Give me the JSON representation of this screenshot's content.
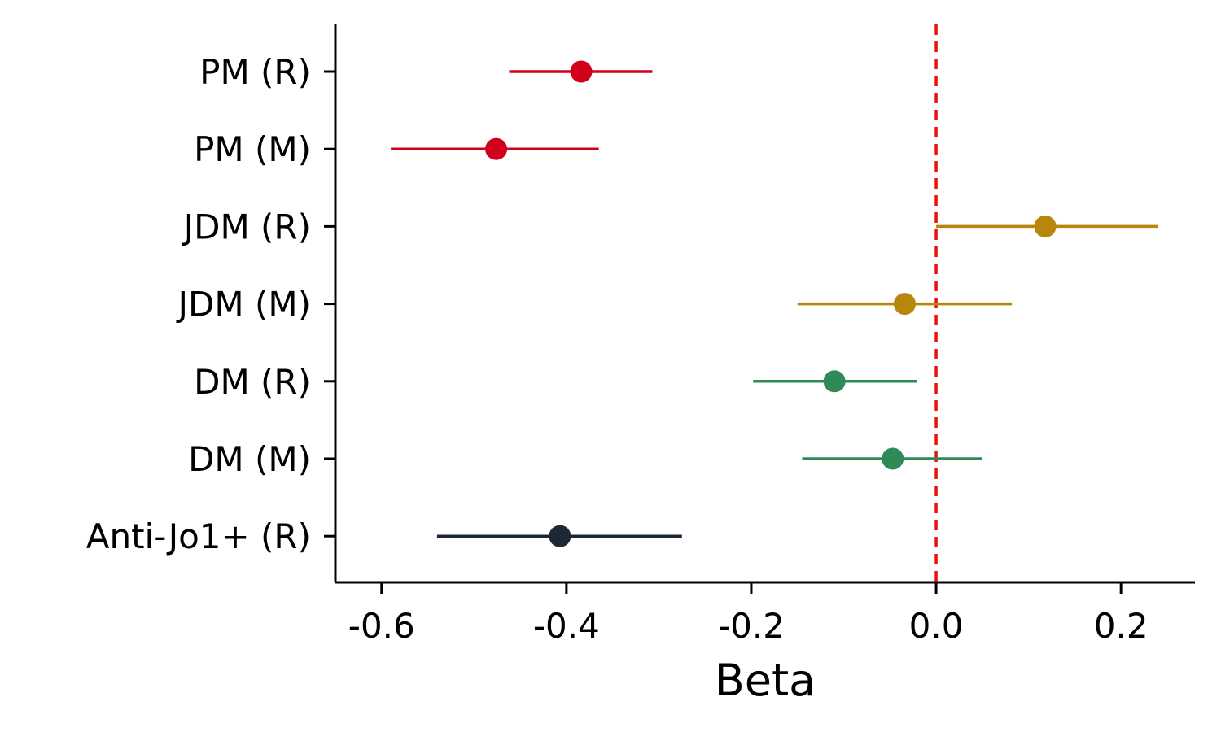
{
  "chart_data": {
    "type": "forest",
    "title": "",
    "xlabel": "Beta",
    "ylabel": "",
    "xlim": [
      -0.65,
      0.28
    ],
    "xticks": [
      -0.6,
      -0.4,
      -0.2,
      0.0,
      0.2
    ],
    "xtick_labels": [
      "-0.6",
      "-0.4",
      "-0.2",
      "0.0",
      "0.2"
    ],
    "reference_line": {
      "x": 0.0,
      "color": "#e8120c",
      "style": "dashed"
    },
    "categories": [
      "PM (R)",
      "PM (M)",
      "JDM (R)",
      "JDM (M)",
      "DM (R)",
      "DM (M)",
      "Anti-Jo1+ (R)"
    ],
    "points": [
      {
        "label": "PM (R)",
        "estimate": -0.384,
        "lower": -0.462,
        "upper": -0.307,
        "color": "#d0021b"
      },
      {
        "label": "PM (M)",
        "estimate": -0.476,
        "lower": -0.59,
        "upper": -0.365,
        "color": "#d0021b"
      },
      {
        "label": "JDM (R)",
        "estimate": 0.118,
        "lower": 0.0,
        "upper": 0.24,
        "color": "#b8860b"
      },
      {
        "label": "JDM (M)",
        "estimate": -0.034,
        "lower": -0.15,
        "upper": 0.082,
        "color": "#b8860b"
      },
      {
        "label": "DM (R)",
        "estimate": -0.11,
        "lower": -0.198,
        "upper": -0.021,
        "color": "#2e8b57"
      },
      {
        "label": "DM (M)",
        "estimate": -0.047,
        "lower": -0.145,
        "upper": 0.05,
        "color": "#2e8b57"
      },
      {
        "label": "Anti-Jo1+ (R)",
        "estimate": -0.407,
        "lower": -0.54,
        "upper": -0.275,
        "color": "#1c2833"
      }
    ],
    "spines": [
      "left",
      "bottom"
    ],
    "grid": false
  }
}
